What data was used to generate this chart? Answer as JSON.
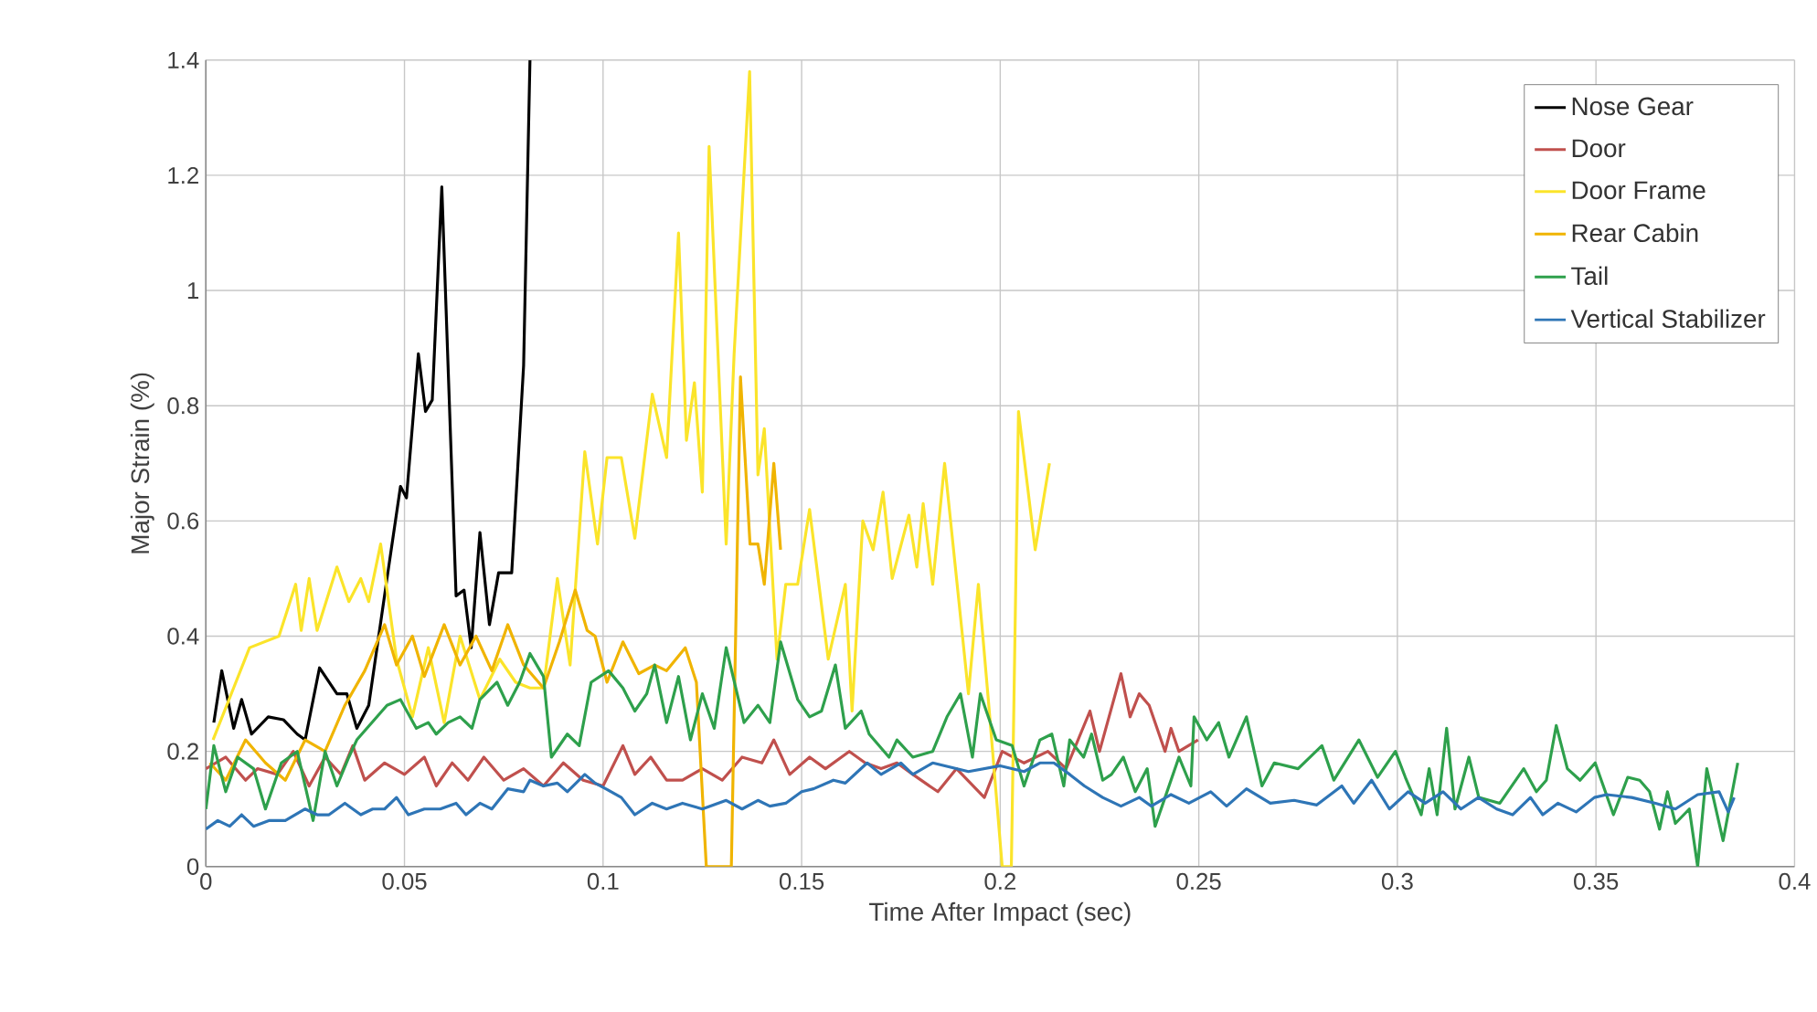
{
  "chart_data": {
    "type": "line",
    "xlabel": "Time After Impact (sec)",
    "ylabel": "Major Strain (%)",
    "xlim": [
      0,
      0.4
    ],
    "ylim": [
      0,
      1.4
    ],
    "xticks": [
      0,
      0.05,
      0.1,
      0.15,
      0.2,
      0.25,
      0.3,
      0.35,
      0.4
    ],
    "yticks": [
      0,
      0.2,
      0.4,
      0.6,
      0.8,
      1,
      1.2,
      1.4
    ],
    "grid": true,
    "legend": "top right",
    "marker": "none",
    "line_style": "solid",
    "series": [
      {
        "name": "Nose Gear",
        "color": "#000000",
        "x": [
          0.002,
          0.004,
          0.007,
          0.009,
          0.0115,
          0.0157,
          0.0195,
          0.023,
          0.025,
          0.0286,
          0.033,
          0.0355,
          0.038,
          0.041,
          0.0456,
          0.049,
          0.0505,
          0.0535,
          0.0553,
          0.057,
          0.0594,
          0.063,
          0.065,
          0.0668,
          0.069,
          0.0714,
          0.0737,
          0.077,
          0.08,
          0.0816
        ],
        "values": [
          0.25,
          0.34,
          0.24,
          0.29,
          0.23,
          0.26,
          0.255,
          0.23,
          0.22,
          0.345,
          0.3,
          0.3,
          0.24,
          0.28,
          0.5,
          0.66,
          0.64,
          0.89,
          0.79,
          0.81,
          1.18,
          0.47,
          0.48,
          0.38,
          0.58,
          0.42,
          0.51,
          0.51,
          0.87,
          1.4
        ]
      },
      {
        "name": "Door",
        "color": "#c0504d",
        "x": [
          0,
          0.005,
          0.01,
          0.013,
          0.018,
          0.022,
          0.026,
          0.03,
          0.034,
          0.037,
          0.04,
          0.045,
          0.05,
          0.055,
          0.058,
          0.062,
          0.066,
          0.07,
          0.075,
          0.08,
          0.085,
          0.09,
          0.095,
          0.1,
          0.105,
          0.108,
          0.112,
          0.116,
          0.12,
          0.125,
          0.13,
          0.135,
          0.14,
          0.143,
          0.147,
          0.152,
          0.156,
          0.162,
          0.166,
          0.17,
          0.174,
          0.178,
          0.1843,
          0.189,
          0.196,
          0.2005,
          0.206,
          0.212,
          0.2166,
          0.2226,
          0.225,
          0.2304,
          0.2327,
          0.235,
          0.2375,
          0.2415,
          0.243,
          0.245,
          0.2498
        ],
        "values": [
          0.17,
          0.19,
          0.15,
          0.17,
          0.16,
          0.2,
          0.14,
          0.19,
          0.16,
          0.21,
          0.15,
          0.18,
          0.16,
          0.19,
          0.14,
          0.18,
          0.15,
          0.19,
          0.15,
          0.17,
          0.14,
          0.18,
          0.15,
          0.14,
          0.21,
          0.16,
          0.19,
          0.15,
          0.15,
          0.17,
          0.15,
          0.19,
          0.18,
          0.22,
          0.16,
          0.19,
          0.17,
          0.2,
          0.18,
          0.17,
          0.18,
          0.16,
          0.13,
          0.17,
          0.12,
          0.2,
          0.18,
          0.2,
          0.17,
          0.27,
          0.2,
          0.335,
          0.26,
          0.3,
          0.28,
          0.2,
          0.24,
          0.2,
          0.22
        ]
      },
      {
        "name": "Door Frame",
        "color": "#fbe42a",
        "x": [
          0.0018,
          0.011,
          0.0184,
          0.0226,
          0.024,
          0.026,
          0.028,
          0.033,
          0.036,
          0.039,
          0.041,
          0.044,
          0.048,
          0.052,
          0.056,
          0.06,
          0.064,
          0.069,
          0.074,
          0.078,
          0.0816,
          0.085,
          0.0885,
          0.0917,
          0.0954,
          0.0986,
          0.101,
          0.1046,
          0.108,
          0.1124,
          0.116,
          0.119,
          0.121,
          0.123,
          0.125,
          0.1267,
          0.131,
          0.133,
          0.1369,
          0.139,
          0.1406,
          0.1438,
          0.146,
          0.149,
          0.152,
          0.1567,
          0.161,
          0.1627,
          0.1654,
          0.168,
          0.1705,
          0.1728,
          0.177,
          0.179,
          0.1806,
          0.183,
          0.186,
          0.189,
          0.192,
          0.1945,
          0.197,
          0.2005,
          0.2028,
          0.2046,
          0.2088,
          0.2124
        ],
        "values": [
          0.22,
          0.38,
          0.4,
          0.49,
          0.41,
          0.5,
          0.41,
          0.52,
          0.46,
          0.5,
          0.46,
          0.56,
          0.36,
          0.26,
          0.38,
          0.25,
          0.4,
          0.29,
          0.36,
          0.32,
          0.31,
          0.31,
          0.5,
          0.35,
          0.72,
          0.56,
          0.71,
          0.71,
          0.57,
          0.82,
          0.71,
          1.1,
          0.74,
          0.84,
          0.65,
          1.25,
          0.56,
          0.89,
          1.38,
          0.68,
          0.76,
          0.36,
          0.49,
          0.49,
          0.62,
          0.36,
          0.49,
          0.27,
          0.6,
          0.55,
          0.65,
          0.5,
          0.61,
          0.52,
          0.63,
          0.49,
          0.7,
          0.5,
          0.3,
          0.49,
          0.29,
          0,
          0,
          0.79,
          0.55,
          0.7
        ]
      },
      {
        "name": "Rear Cabin",
        "color": "#f0b400",
        "x": [
          0.001,
          0.005,
          0.01,
          0.015,
          0.02,
          0.025,
          0.03,
          0.035,
          0.04,
          0.045,
          0.048,
          0.052,
          0.055,
          0.06,
          0.064,
          0.068,
          0.072,
          0.076,
          0.08,
          0.085,
          0.089,
          0.093,
          0.096,
          0.098,
          0.101,
          0.105,
          0.109,
          0.113,
          0.116,
          0.1207,
          0.1235,
          0.126,
          0.128,
          0.1323,
          0.1346,
          0.137,
          0.139,
          0.1406,
          0.143,
          0.1447
        ],
        "values": [
          0.18,
          0.15,
          0.22,
          0.18,
          0.15,
          0.22,
          0.2,
          0.28,
          0.34,
          0.42,
          0.35,
          0.4,
          0.33,
          0.42,
          0.35,
          0.4,
          0.34,
          0.42,
          0.35,
          0.31,
          0.39,
          0.48,
          0.41,
          0.4,
          0.32,
          0.39,
          0.335,
          0.35,
          0.34,
          0.38,
          0.32,
          0,
          0,
          0,
          0.85,
          0.56,
          0.56,
          0.49,
          0.7,
          0.55
        ]
      },
      {
        "name": "Tail",
        "color": "#2ea04c",
        "x": [
          0,
          0.002,
          0.005,
          0.008,
          0.012,
          0.015,
          0.019,
          0.023,
          0.027,
          0.03,
          0.033,
          0.036,
          0.038,
          0.0456,
          0.049,
          0.053,
          0.056,
          0.058,
          0.061,
          0.064,
          0.067,
          0.069,
          0.0733,
          0.076,
          0.079,
          0.0816,
          0.085,
          0.087,
          0.091,
          0.094,
          0.097,
          0.1014,
          0.105,
          0.108,
          0.111,
          0.113,
          0.116,
          0.119,
          0.122,
          0.125,
          0.128,
          0.131,
          0.1355,
          0.139,
          0.142,
          0.1447,
          0.149,
          0.152,
          0.155,
          0.1585,
          0.161,
          0.165,
          0.167,
          0.172,
          0.174,
          0.178,
          0.183,
          0.1866,
          0.19,
          0.193,
          0.195,
          0.199,
          0.203,
          0.206,
          0.21,
          0.213,
          0.216,
          0.2175,
          0.221,
          0.223,
          0.2258,
          0.228,
          0.231,
          0.234,
          0.237,
          0.239,
          0.245,
          0.248,
          0.2488,
          0.252,
          0.255,
          0.2576,
          0.262,
          0.2659,
          0.269,
          0.275,
          0.281,
          0.284,
          0.2903,
          0.295,
          0.2995,
          0.302,
          0.306,
          0.308,
          0.31,
          0.3124,
          0.3145,
          0.318,
          0.3205,
          0.3258,
          0.3318,
          0.335,
          0.3375,
          0.34,
          0.3428,
          0.346,
          0.3498,
          0.3544,
          0.358,
          0.361,
          0.3635,
          0.366,
          0.368,
          0.37,
          0.3735,
          0.3756,
          0.3779,
          0.382,
          0.3857
        ],
        "values": [
          0.1,
          0.21,
          0.13,
          0.19,
          0.17,
          0.1,
          0.18,
          0.2,
          0.08,
          0.2,
          0.14,
          0.19,
          0.22,
          0.28,
          0.29,
          0.24,
          0.25,
          0.23,
          0.25,
          0.26,
          0.24,
          0.29,
          0.32,
          0.28,
          0.32,
          0.37,
          0.33,
          0.19,
          0.23,
          0.21,
          0.32,
          0.34,
          0.31,
          0.27,
          0.3,
          0.35,
          0.25,
          0.33,
          0.22,
          0.3,
          0.24,
          0.38,
          0.25,
          0.28,
          0.25,
          0.39,
          0.29,
          0.26,
          0.27,
          0.35,
          0.24,
          0.27,
          0.23,
          0.19,
          0.22,
          0.19,
          0.2,
          0.26,
          0.3,
          0.19,
          0.3,
          0.22,
          0.21,
          0.14,
          0.22,
          0.23,
          0.14,
          0.22,
          0.19,
          0.23,
          0.15,
          0.16,
          0.19,
          0.13,
          0.17,
          0.07,
          0.19,
          0.14,
          0.26,
          0.22,
          0.25,
          0.19,
          0.26,
          0.14,
          0.18,
          0.17,
          0.21,
          0.15,
          0.22,
          0.155,
          0.2,
          0.155,
          0.09,
          0.17,
          0.09,
          0.24,
          0.1,
          0.19,
          0.12,
          0.11,
          0.17,
          0.13,
          0.15,
          0.245,
          0.17,
          0.15,
          0.18,
          0.09,
          0.155,
          0.15,
          0.13,
          0.065,
          0.13,
          0.075,
          0.1,
          0,
          0.17,
          0.045,
          0.18
        ]
      },
      {
        "name": "Vertical Stabilizer",
        "color": "#2e75b6",
        "x": [
          0,
          0.003,
          0.006,
          0.009,
          0.012,
          0.016,
          0.02,
          0.025,
          0.028,
          0.031,
          0.035,
          0.039,
          0.042,
          0.045,
          0.048,
          0.051,
          0.055,
          0.059,
          0.063,
          0.0655,
          0.069,
          0.072,
          0.076,
          0.08,
          0.0816,
          0.085,
          0.0885,
          0.091,
          0.0954,
          0.098,
          0.101,
          0.1046,
          0.108,
          0.1124,
          0.116,
          0.12,
          0.125,
          0.131,
          0.135,
          0.139,
          0.142,
          0.146,
          0.15,
          0.153,
          0.158,
          0.161,
          0.1665,
          0.17,
          0.175,
          0.178,
          0.183,
          0.192,
          0.2,
          0.206,
          0.21,
          0.2135,
          0.2175,
          0.2212,
          0.2258,
          0.2304,
          0.235,
          0.238,
          0.243,
          0.2475,
          0.253,
          0.257,
          0.262,
          0.268,
          0.274,
          0.2797,
          0.286,
          0.289,
          0.2935,
          0.298,
          0.3027,
          0.307,
          0.3115,
          0.316,
          0.3204,
          0.325,
          0.329,
          0.3335,
          0.3366,
          0.3404,
          0.345,
          0.3496,
          0.3527,
          0.359,
          0.365,
          0.37,
          0.3756,
          0.381,
          0.3833,
          0.3848
        ],
        "values": [
          0.065,
          0.08,
          0.07,
          0.09,
          0.07,
          0.08,
          0.08,
          0.1,
          0.09,
          0.09,
          0.11,
          0.09,
          0.1,
          0.1,
          0.12,
          0.09,
          0.1,
          0.1,
          0.11,
          0.09,
          0.11,
          0.1,
          0.135,
          0.13,
          0.15,
          0.14,
          0.145,
          0.13,
          0.16,
          0.145,
          0.134,
          0.12,
          0.09,
          0.11,
          0.1,
          0.11,
          0.1,
          0.115,
          0.1,
          0.115,
          0.105,
          0.11,
          0.13,
          0.135,
          0.15,
          0.145,
          0.18,
          0.16,
          0.18,
          0.16,
          0.18,
          0.165,
          0.175,
          0.165,
          0.18,
          0.18,
          0.16,
          0.14,
          0.12,
          0.105,
          0.12,
          0.105,
          0.125,
          0.11,
          0.13,
          0.105,
          0.135,
          0.11,
          0.115,
          0.107,
          0.14,
          0.11,
          0.15,
          0.1,
          0.13,
          0.11,
          0.13,
          0.1,
          0.12,
          0.1,
          0.09,
          0.12,
          0.09,
          0.11,
          0.095,
          0.12,
          0.125,
          0.12,
          0.11,
          0.1,
          0.125,
          0.13,
          0.095,
          0.12
        ]
      }
    ]
  }
}
